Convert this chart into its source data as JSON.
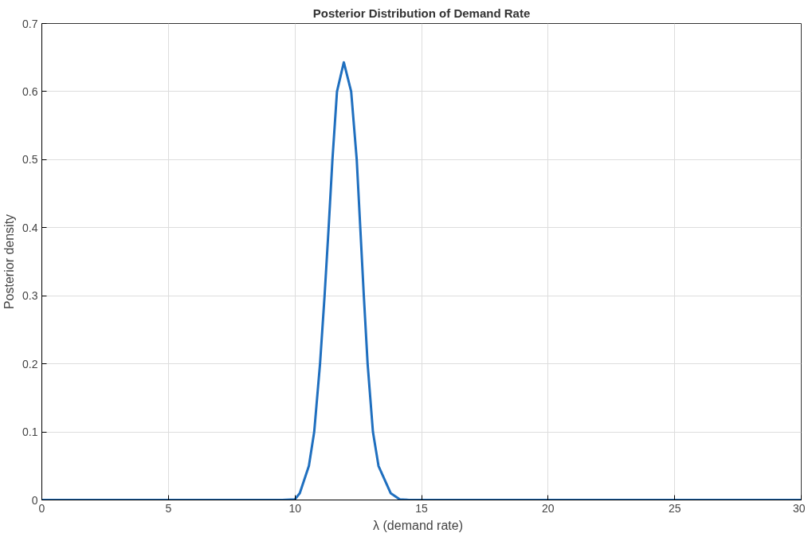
{
  "chart_data": {
    "type": "line",
    "title": "Posterior Distribution of Demand Rate",
    "xlabel": "λ  (demand  rate)",
    "ylabel": "Posterior density",
    "x": [
      0,
      5,
      9.5,
      10,
      10.19,
      10.55,
      10.76,
      10.99,
      11.17,
      11.33,
      11.48,
      11.66,
      11.93,
      12.22,
      12.44,
      12.58,
      12.72,
      12.87,
      13.08,
      13.3,
      13.78,
      14.14,
      14.5,
      20,
      30
    ],
    "series": [
      {
        "color": "#1f6fbf",
        "values": [
          0,
          0,
          0,
          0.001,
          0.01,
          0.05,
          0.1,
          0.2,
          0.3,
          0.4,
          0.5,
          0.6,
          0.643,
          0.6,
          0.5,
          0.4,
          0.3,
          0.2,
          0.1,
          0.05,
          0.01,
          0.001,
          0,
          0,
          0
        ]
      }
    ],
    "xlim": [
      0,
      30
    ],
    "ylim": [
      0,
      0.7
    ],
    "xticks": [
      0,
      5,
      10,
      15,
      20,
      25,
      30
    ],
    "yticks": [
      0,
      0.1,
      0.2,
      0.3,
      0.4,
      0.5,
      0.6,
      0.7
    ],
    "grid": true,
    "marker": "none",
    "line_style": "solid"
  }
}
